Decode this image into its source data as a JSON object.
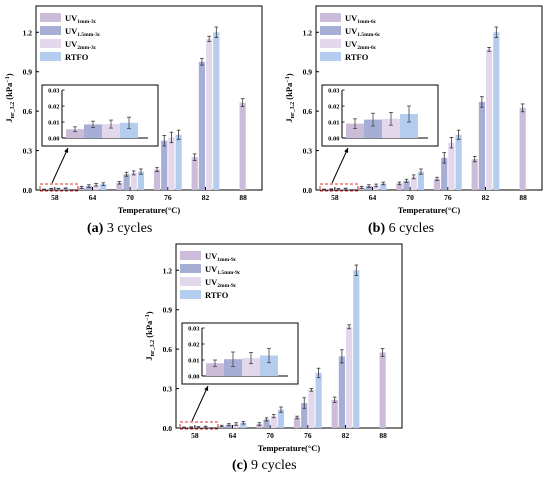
{
  "figure": {
    "colors": {
      "uv1": "#cdbcd9",
      "uv15": "#a7aed6",
      "uv2": "#e3d7ec",
      "rtfo": "#b4cdee",
      "highlight": "#e0312c"
    },
    "captions": [
      {
        "letter": "(a)",
        "text": " 3 cycles"
      },
      {
        "letter": "(b)",
        "text": " 6 cycles"
      },
      {
        "letter": "(c)",
        "text": " 9 cycles"
      }
    ]
  },
  "chart_data": [
    {
      "type": "bar",
      "xlabel": "Temperature(°C)",
      "ylabel_main": "J",
      "ylabel_sub": "nr_3.2",
      "ylabel_unit": " (kPa",
      "ylabel_exp": "−1",
      "ylabel_close": ")",
      "categories": [
        "58",
        "64",
        "70",
        "76",
        "82",
        "88"
      ],
      "ylim": [
        0,
        1.4
      ],
      "yticks": [
        "0.0",
        "0.3",
        "0.6",
        "0.9",
        "1.2"
      ],
      "series": [
        {
          "name": "UV",
          "sub": "1mm-3c",
          "values": [
            0.005,
            0.02,
            0.055,
            0.155,
            0.25,
            0.665
          ],
          "errors": [
            0.002,
            0.008,
            0.01,
            0.015,
            0.025,
            0.03
          ]
        },
        {
          "name": "UV",
          "sub": "1.5mm-3c",
          "values": [
            0.01,
            0.03,
            0.12,
            0.375,
            0.975,
            null
          ],
          "errors": [
            0.003,
            0.01,
            0.015,
            0.04,
            0.025,
            null
          ]
        },
        {
          "name": "UV",
          "sub": "2mm-3c",
          "values": [
            0.01,
            0.04,
            0.13,
            0.4,
            1.15,
            null
          ],
          "errors": [
            0.003,
            0.01,
            0.015,
            0.04,
            0.02,
            null
          ]
        },
        {
          "name": "RTFO",
          "sub": "",
          "values": [
            0.012,
            0.045,
            0.14,
            0.42,
            1.2,
            null
          ],
          "errors": [
            0.004,
            0.01,
            0.02,
            0.035,
            0.04,
            null
          ]
        }
      ],
      "inset": {
        "ylim": [
          0,
          0.03
        ],
        "yticks": [
          "0.00",
          "0.01",
          "0.02",
          "0.03"
        ],
        "values": [
          0.0055,
          0.0085,
          0.0087,
          0.0095
        ],
        "errors": [
          0.0015,
          0.002,
          0.0025,
          0.0035
        ]
      }
    },
    {
      "type": "bar",
      "xlabel": "Temperature(°C)",
      "ylabel_main": "J",
      "ylabel_sub": "nr_3.2",
      "ylabel_unit": " (kPa",
      "ylabel_exp": "−1",
      "ylabel_close": ")",
      "categories": [
        "58",
        "64",
        "70",
        "76",
        "82",
        "88"
      ],
      "ylim": [
        0,
        1.4
      ],
      "yticks": [
        "0.0",
        "0.3",
        "0.6",
        "0.9",
        "1.2"
      ],
      "series": [
        {
          "name": "UV",
          "sub": "1mm-6c",
          "values": [
            0.005,
            0.02,
            0.05,
            0.085,
            0.235,
            0.625
          ],
          "errors": [
            0.002,
            0.008,
            0.01,
            0.012,
            0.02,
            0.03
          ]
        },
        {
          "name": "UV",
          "sub": "1.5mm-6c",
          "values": [
            0.006,
            0.03,
            0.07,
            0.245,
            0.67,
            null
          ],
          "errors": [
            0.003,
            0.01,
            0.012,
            0.04,
            0.04,
            null
          ]
        },
        {
          "name": "UV",
          "sub": "2mm-6c",
          "values": [
            0.008,
            0.035,
            0.1,
            0.36,
            1.07,
            null
          ],
          "errors": [
            0.003,
            0.01,
            0.015,
            0.04,
            0.015,
            null
          ]
        },
        {
          "name": "RTFO",
          "sub": "",
          "values": [
            0.01,
            0.05,
            0.14,
            0.42,
            1.2,
            null
          ],
          "errors": [
            0.004,
            0.01,
            0.02,
            0.035,
            0.04,
            null
          ]
        }
      ],
      "inset": {
        "ylim": [
          0,
          0.03
        ],
        "yticks": [
          "0.00",
          "0.01",
          "0.02",
          "0.03"
        ],
        "values": [
          0.009,
          0.0115,
          0.012,
          0.015
        ],
        "errors": [
          0.003,
          0.004,
          0.004,
          0.005
        ]
      }
    },
    {
      "type": "bar",
      "xlabel": "Temperature(°C)",
      "ylabel_main": "J",
      "ylabel_sub": "nr_3.2",
      "ylabel_unit": " (kPa",
      "ylabel_exp": "−1",
      "ylabel_close": ")",
      "categories": [
        "58",
        "64",
        "70",
        "76",
        "82",
        "88"
      ],
      "ylim": [
        0,
        1.4
      ],
      "yticks": [
        "0.0",
        "0.3",
        "0.6",
        "0.9",
        "1.2"
      ],
      "series": [
        {
          "name": "UV",
          "sub": "1mm-9c",
          "values": [
            0.005,
            0.015,
            0.03,
            0.08,
            0.215,
            0.575
          ],
          "errors": [
            0.002,
            0.006,
            0.01,
            0.01,
            0.02,
            0.03
          ]
        },
        {
          "name": "UV",
          "sub": "1.5mm-9c",
          "values": [
            0.006,
            0.025,
            0.065,
            0.19,
            0.545,
            null
          ],
          "errors": [
            0.003,
            0.008,
            0.012,
            0.04,
            0.05,
            null
          ]
        },
        {
          "name": "UV",
          "sub": "2mm-9c",
          "values": [
            0.008,
            0.03,
            0.09,
            0.29,
            0.77,
            null
          ],
          "errors": [
            0.003,
            0.01,
            0.012,
            0.01,
            0.015,
            null
          ]
        },
        {
          "name": "RTFO",
          "sub": "",
          "values": [
            0.01,
            0.04,
            0.14,
            0.42,
            1.2,
            null
          ],
          "errors": [
            0.004,
            0.01,
            0.02,
            0.035,
            0.04,
            null
          ]
        }
      ],
      "inset": {
        "ylim": [
          0,
          0.03
        ],
        "yticks": [
          "0.00",
          "0.01",
          "0.02",
          "0.03"
        ],
        "values": [
          0.008,
          0.0105,
          0.0112,
          0.0128
        ],
        "errors": [
          0.002,
          0.0045,
          0.0035,
          0.0045
        ]
      }
    }
  ]
}
